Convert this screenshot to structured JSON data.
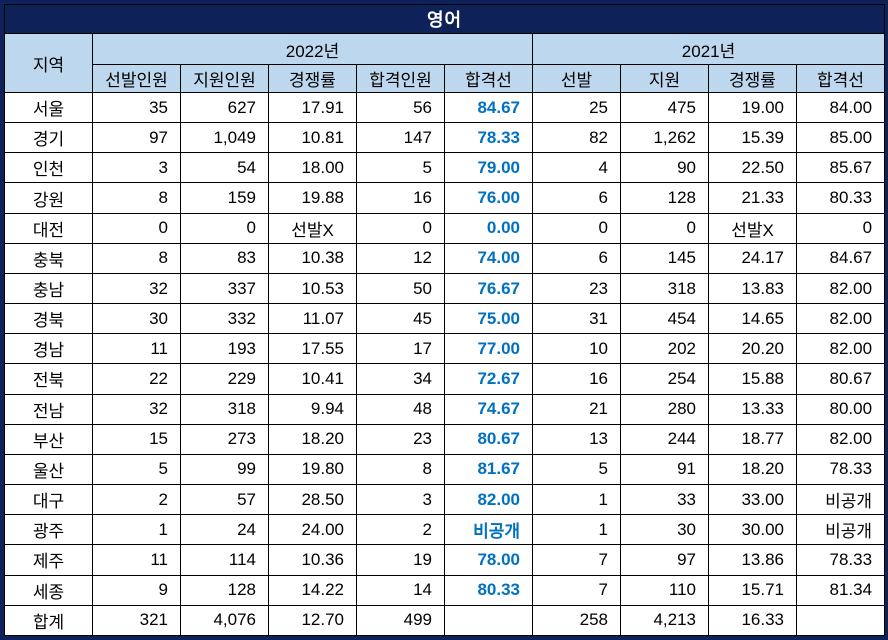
{
  "title": "영어",
  "colors": {
    "title_bg": "#0e2159",
    "header_bg": "#bdd7ee",
    "highlight_text": "#0070c0",
    "frame": "#0e2159"
  },
  "chart_data": {
    "type": "table",
    "title": "영어",
    "region_header": "지역",
    "year_groups": [
      {
        "label": "2022년",
        "columns": [
          "선발인원",
          "지원인원",
          "경쟁률",
          "합격인원",
          "합격선"
        ]
      },
      {
        "label": "2021년",
        "columns": [
          "선발",
          "지원",
          "경쟁률",
          "합격선"
        ]
      }
    ],
    "highlight_column_index": 5,
    "rows": [
      [
        "서울",
        "35",
        "627",
        "17.91",
        "56",
        "84.67",
        "25",
        "475",
        "19.00",
        "84.00"
      ],
      [
        "경기",
        "97",
        "1,049",
        "10.81",
        "147",
        "78.33",
        "82",
        "1,262",
        "15.39",
        "85.00"
      ],
      [
        "인천",
        "3",
        "54",
        "18.00",
        "5",
        "79.00",
        "4",
        "90",
        "22.50",
        "85.67"
      ],
      [
        "강원",
        "8",
        "159",
        "19.88",
        "16",
        "76.00",
        "6",
        "128",
        "21.33",
        "80.33"
      ],
      [
        "대전",
        "0",
        "0",
        "선발X",
        "0",
        "0.00",
        "0",
        "0",
        "선발X",
        "0"
      ],
      [
        "충북",
        "8",
        "83",
        "10.38",
        "12",
        "74.00",
        "6",
        "145",
        "24.17",
        "84.67"
      ],
      [
        "충남",
        "32",
        "337",
        "10.53",
        "50",
        "76.67",
        "23",
        "318",
        "13.83",
        "82.00"
      ],
      [
        "경북",
        "30",
        "332",
        "11.07",
        "45",
        "75.00",
        "31",
        "454",
        "14.65",
        "82.00"
      ],
      [
        "경남",
        "11",
        "193",
        "17.55",
        "17",
        "77.00",
        "10",
        "202",
        "20.20",
        "82.00"
      ],
      [
        "전북",
        "22",
        "229",
        "10.41",
        "34",
        "72.67",
        "16",
        "254",
        "15.88",
        "80.67"
      ],
      [
        "전남",
        "32",
        "318",
        "9.94",
        "48",
        "74.67",
        "21",
        "280",
        "13.33",
        "80.00"
      ],
      [
        "부산",
        "15",
        "273",
        "18.20",
        "23",
        "80.67",
        "13",
        "244",
        "18.77",
        "82.00"
      ],
      [
        "울산",
        "5",
        "99",
        "19.80",
        "8",
        "81.67",
        "5",
        "91",
        "18.20",
        "78.33"
      ],
      [
        "대구",
        "2",
        "57",
        "28.50",
        "3",
        "82.00",
        "1",
        "33",
        "33.00",
        "비공개"
      ],
      [
        "광주",
        "1",
        "24",
        "24.00",
        "2",
        "비공개",
        "1",
        "30",
        "30.00",
        "비공개"
      ],
      [
        "제주",
        "11",
        "114",
        "10.36",
        "19",
        "78.00",
        "7",
        "97",
        "13.86",
        "78.33"
      ],
      [
        "세종",
        "9",
        "128",
        "14.22",
        "14",
        "80.33",
        "7",
        "110",
        "15.71",
        "81.34"
      ],
      [
        "합계",
        "321",
        "4,076",
        "12.70",
        "499",
        "",
        "258",
        "4,213",
        "16.33",
        ""
      ]
    ]
  }
}
